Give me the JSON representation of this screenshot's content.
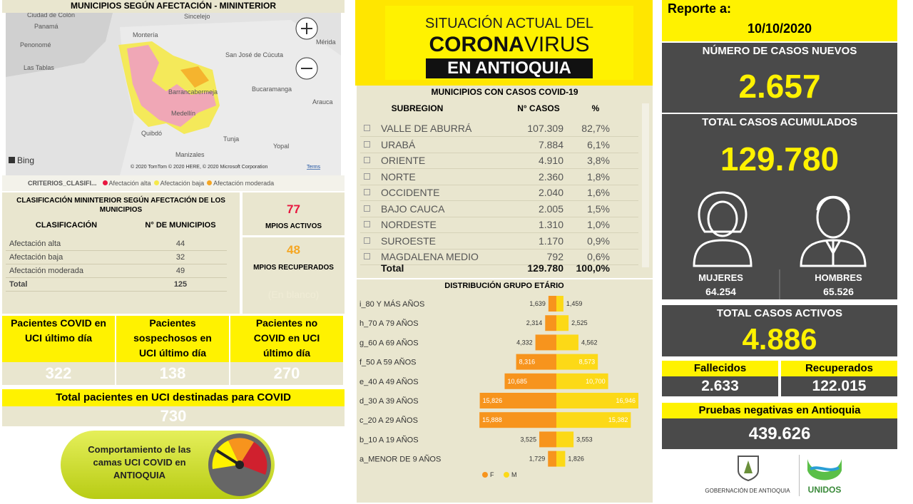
{
  "map_panel": {
    "title": "MUNICIPIOS SEGÚN AFECTACIÓN - MININTERIOR",
    "places": [
      "Ciudad de Colón",
      "Panamá",
      "Penonomé",
      "Las Tablas",
      "Sincelejo",
      "Montería",
      "San José de Cúcuta",
      "Mérida",
      "Barrancabermeja",
      "Bucaramanga",
      "Arauca",
      "Medellín",
      "Quibdó",
      "Tunja",
      "Yopal",
      "Manizales"
    ],
    "provider": "Bing",
    "attribution": "© 2020 TomTom © 2020 HERE, © 2020 Microsoft Corporation",
    "terms": "Terms",
    "legend_title": "CRITERIOS_CLASIFI...",
    "legend": [
      {
        "label": "Afectación alta",
        "color": "#e8173f"
      },
      {
        "label": "Afectación baja",
        "color": "#f5e94a"
      },
      {
        "label": "Afectación moderada",
        "color": "#f5a623"
      }
    ]
  },
  "classification": {
    "title": "CLASIFICACIÓN MININTERIOR SEGÚN AFECTACIÓN DE LOS MUNICIPIOS",
    "columns": [
      "CLASIFICACIÓN",
      "N° DE MUNICIPIOS"
    ],
    "rows": [
      [
        "Afectación alta",
        "44"
      ],
      [
        "Afectación baja",
        "32"
      ],
      [
        "Afectación moderada",
        "49"
      ]
    ],
    "total": [
      "Total",
      "125"
    ]
  },
  "active_municipalities": {
    "value": "77",
    "label": "MPIOS ACTIVOS"
  },
  "recovered_municipalities": {
    "value": "48",
    "label": "MPIOS RECUPERADOS",
    "note": "(En blanco)"
  },
  "uci_cards": [
    {
      "label": "Pacientes COVID en UCI último día",
      "value": "322"
    },
    {
      "label": "Pacientes sospechosos en UCI último día",
      "value": "138"
    },
    {
      "label": "Pacientes no COVID en UCI último día",
      "value": "270"
    }
  ],
  "uci_total": {
    "label": "Total pacientes en UCI destinadas para COVID",
    "value": "730"
  },
  "uci_button": "Comportamiento de las camas UCI COVID en ANTIOQUIA",
  "banner": {
    "line1": "SITUACIÓN ACTUAL DEL",
    "line2_bold": "CORONA",
    "line2_light": "VIRUS",
    "line3": "EN ANTIOQUIA"
  },
  "subregions": {
    "title": "MUNICIPIOS CON CASOS COVID-19",
    "columns": [
      "SUBREGION",
      "N° CASOS",
      "%"
    ],
    "rows": [
      [
        "VALLE DE ABURRÁ",
        "107.309",
        "82,7%"
      ],
      [
        "URABÁ",
        "7.884",
        "6,1%"
      ],
      [
        "ORIENTE",
        "4.910",
        "3,8%"
      ],
      [
        "NORTE",
        "2.360",
        "1,8%"
      ],
      [
        "OCCIDENTE",
        "2.040",
        "1,6%"
      ],
      [
        "BAJO CAUCA",
        "2.005",
        "1,5%"
      ],
      [
        "NORDESTE",
        "1.310",
        "1,0%"
      ],
      [
        "SUROESTE",
        "1.170",
        "0,9%"
      ],
      [
        "MAGDALENA MEDIO",
        "792",
        "0,6%"
      ]
    ],
    "total": [
      "Total",
      "129.780",
      "100,0%"
    ]
  },
  "age_chart": {
    "type": "bar",
    "title": "DISTRIBUCIÓN GRUPO ETÁRIO",
    "categories": [
      "i_80 Y MÁS AÑOS",
      "h_70 A 79 AÑOS",
      "g_60 A 69 AÑOS",
      "f_50 A 59 AÑOS",
      "e_40 A 49 AÑOS",
      "d_30 A 39 AÑOS",
      "c_20 A 29 AÑOS",
      "b_10 A 19 AÑOS",
      "a_MENOR DE 9 AÑOS"
    ],
    "series": [
      {
        "name": "F",
        "color": "#f7941d",
        "values": [
          1639,
          2314,
          4332,
          8316,
          10685,
          15826,
          15888,
          3525,
          1729
        ],
        "value_labels": [
          "1,639",
          "2,314",
          "4,332",
          "8,316",
          "10,685",
          "15,826",
          "15,888",
          "3,525",
          "1,729"
        ]
      },
      {
        "name": "M",
        "color": "#fcd917",
        "values": [
          1459,
          2525,
          4562,
          8573,
          10700,
          16946,
          15382,
          3553,
          1826
        ],
        "value_labels": [
          "1,459",
          "2,525",
          "4,562",
          "8,573",
          "10,700",
          "16,946",
          "15,382",
          "3,553",
          "1,826"
        ]
      }
    ]
  },
  "report": {
    "label": "Reporte a:",
    "date": "10/10/2020"
  },
  "new_cases": {
    "label": "NÚMERO DE CASOS NUEVOS",
    "value": "2.657"
  },
  "total_cases": {
    "label": "TOTAL CASOS ACUMULADOS",
    "value": "129.780",
    "women": {
      "label": "MUJERES",
      "value": "64.254"
    },
    "men": {
      "label": "HOMBRES",
      "value": "65.526"
    }
  },
  "active_cases": {
    "label": "TOTAL CASOS ACTIVOS",
    "value": "4.886"
  },
  "deaths": {
    "label": "Fallecidos",
    "value": "2.633"
  },
  "recovered": {
    "label": "Recuperados",
    "value": "122.015"
  },
  "negative_tests": {
    "label": "Pruebas negativas en Antioquia",
    "value": "439.626"
  },
  "logos": {
    "government": "GOBERNACIÓN DE ANTIOQUIA",
    "unidos": "UNIDOS"
  }
}
